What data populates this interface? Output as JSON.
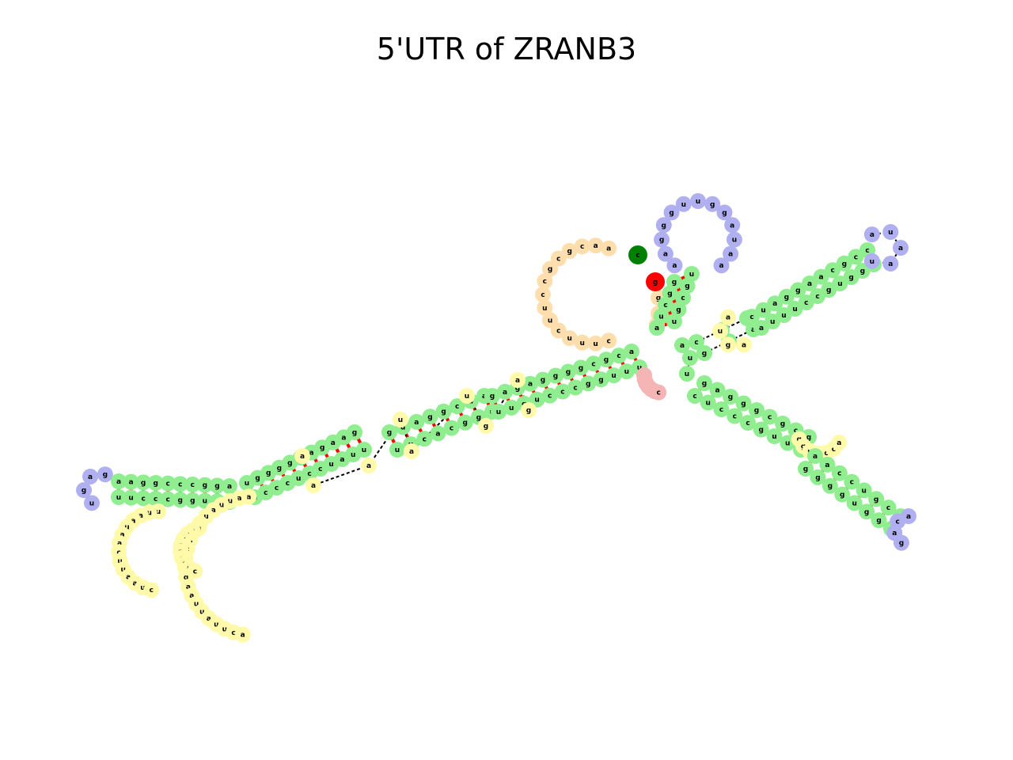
{
  "title": "5'UTR of ZRANB3",
  "colors": {
    "stem": "#90ee90",
    "hairpin_loop": "#b0b0f0",
    "internal_loop": "#fffaaa",
    "multi_loop": "#f5b5b5",
    "exterior": "#ffdead",
    "five_prime_end": "#008000",
    "three_prime_end": "#ff0000",
    "pair_bond": "#ff0000",
    "backbone": "#000000"
  },
  "ends": {
    "five_prime_base": "c",
    "three_prime_base": "g"
  },
  "regions": {
    "exterior_5p": "uuuccgcgccaacc",
    "multiloop": "gaacguc",
    "exterior_3p": "gcca",
    "branch_top_hairpin": "guuggauaagg",
    "branch_right_upper_hairpin": "aua",
    "branch_right_lower_hairpin": "cag",
    "branch_left_hairpin": "gag",
    "branch_right_lower_internal": "ggucc",
    "branch_left_big_loop": "aauuaauagcuaguauuaucuaguaauuacuaac"
  }
}
